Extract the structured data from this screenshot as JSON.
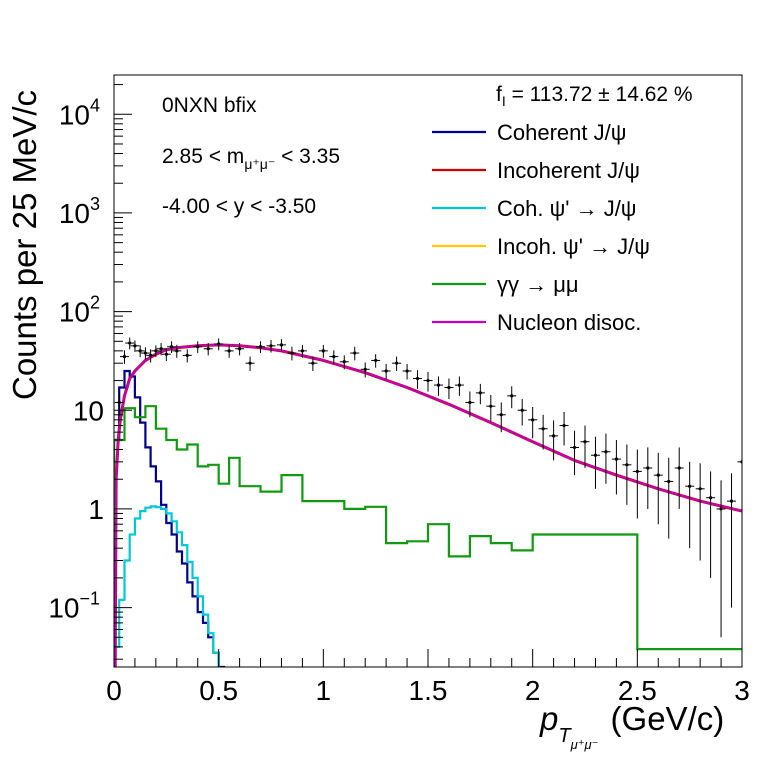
{
  "chart_data": {
    "type": "line",
    "scale": {
      "y": "log"
    },
    "xlim": [
      0,
      3
    ],
    "ylim": [
      0.025,
      25000
    ],
    "y_axis_label": "Counts per  25 MeV/c",
    "x_axis_label": "p",
    "x_axis_label_subscript": "T",
    "x_axis_label_subsub": "μ⁺μ⁻",
    "x_axis_unit": "(GeV/c)",
    "x_ticks": [
      {
        "v": 0,
        "label": "0"
      },
      {
        "v": 0.5,
        "label": "0.5"
      },
      {
        "v": 1,
        "label": "1"
      },
      {
        "v": 1.5,
        "label": "1.5"
      },
      {
        "v": 2,
        "label": "2"
      },
      {
        "v": 2.5,
        "label": "2.5"
      },
      {
        "v": 3,
        "label": "3"
      }
    ],
    "y_ticks": [
      {
        "v": 0.1,
        "base": "10",
        "exp": "−1"
      },
      {
        "v": 1,
        "base": "1",
        "exp": ""
      },
      {
        "v": 10,
        "base": "10",
        "exp": ""
      },
      {
        "v": 100,
        "base": "10",
        "exp": "2"
      },
      {
        "v": 1000,
        "base": "10",
        "exp": "3"
      },
      {
        "v": 10000,
        "base": "10",
        "exp": "4"
      }
    ],
    "annotations": {
      "label": "0NXN bfix",
      "mass_pre": "2.85 < m",
      "mass_sub": "μ⁺μ⁻",
      "mass_post": " < 3.35",
      "rapidity": "-4.00 < y < -3.50",
      "fi_pre": "f",
      "fi_sub": "I",
      "fi_post": " = 113.72 ± 14.62 %"
    },
    "legend_position": "top-right",
    "series": [
      {
        "name": "Coherent J/ψ",
        "color": "#00008b",
        "style": "step",
        "x": [
          0,
          0.025,
          0.05,
          0.075,
          0.1,
          0.125,
          0.15,
          0.175,
          0.2,
          0.225,
          0.25,
          0.275,
          0.3,
          0.325,
          0.35,
          0.375,
          0.4,
          0.425,
          0.45,
          0.475,
          0.5,
          0.525,
          0.55,
          0.575
        ],
        "y": [
          5,
          17,
          25,
          22,
          13.5,
          7.5,
          4.2,
          2.7,
          1.9,
          1.1,
          0.72,
          0.55,
          0.37,
          0.28,
          0.18,
          0.13,
          0.09,
          0.07,
          0.05,
          0.035,
          0.025,
          0.02,
          0.015,
          0.012
        ]
      },
      {
        "name": "Incoherent J/ψ",
        "color": "#cc0000",
        "style": "smooth",
        "x": [
          0.005,
          0.01,
          0.02,
          0.03,
          0.05,
          0.075,
          0.1,
          0.15,
          0.2,
          0.25,
          0.3,
          0.4,
          0.5,
          0.6,
          0.7,
          0.8,
          1,
          1.2,
          1.4,
          1.6,
          1.8,
          2,
          2.2,
          2.4,
          2.6,
          2.8,
          3
        ],
        "y": [
          0.01,
          2,
          5,
          8,
          14,
          21,
          25,
          32,
          37,
          41,
          43,
          45,
          46,
          45,
          43,
          40,
          32,
          24,
          17,
          11.5,
          7.5,
          4.8,
          3.1,
          2.2,
          1.6,
          1.2,
          0.95
        ]
      },
      {
        "name": "Coh. ψ' →  J/ψ",
        "color": "#00c8d2",
        "style": "step",
        "x": [
          0,
          0.025,
          0.05,
          0.075,
          0.1,
          0.125,
          0.15,
          0.175,
          0.2,
          0.225,
          0.25,
          0.275,
          0.3,
          0.325,
          0.35,
          0.375,
          0.4,
          0.425,
          0.45,
          0.475,
          0.5,
          0.525,
          0.55,
          0.575
        ],
        "y": [
          0.04,
          0.12,
          0.3,
          0.55,
          0.8,
          0.95,
          1.03,
          1.06,
          1.04,
          1.0,
          0.9,
          0.75,
          0.58,
          0.43,
          0.29,
          0.2,
          0.13,
          0.085,
          0.055,
          0.035,
          0.022,
          0.015,
          0.01,
          0.007
        ]
      },
      {
        "name": "Incoh. ψ' →  J/ψ",
        "color": "#ffc800",
        "style": "none",
        "x": [],
        "y": []
      },
      {
        "name": "γγ → μμ",
        "color": "#119911",
        "style": "step",
        "x": [
          0,
          0.05,
          0.1,
          0.15,
          0.2,
          0.25,
          0.3,
          0.35,
          0.4,
          0.45,
          0.5,
          0.55,
          0.6,
          0.7,
          0.8,
          0.9,
          1,
          1.1,
          1.2,
          1.3,
          1.4,
          1.5,
          1.6,
          1.7,
          1.8,
          1.9,
          2,
          2.5,
          3
        ],
        "y": [
          5,
          10.5,
          8.5,
          11,
          6.5,
          5,
          4,
          4.5,
          2.7,
          2.8,
          1.8,
          3.3,
          1.7,
          1.5,
          2.2,
          1.2,
          1.2,
          1,
          1.05,
          0.45,
          0.47,
          0.7,
          0.33,
          0.53,
          0.45,
          0.38,
          0.55,
          0.038,
          0.038
        ]
      },
      {
        "name": "Nucleon disoc.",
        "color": "#c000c0",
        "style": "smooth",
        "x": [
          0.005,
          0.01,
          0.02,
          0.03,
          0.05,
          0.075,
          0.1,
          0.15,
          0.2,
          0.25,
          0.3,
          0.4,
          0.5,
          0.6,
          0.7,
          0.8,
          1,
          1.2,
          1.4,
          1.6,
          1.8,
          2,
          2.2,
          2.4,
          2.6,
          2.8,
          3
        ],
        "y": [
          0.01,
          2,
          5,
          8,
          14,
          21,
          25,
          32,
          37,
          41,
          43,
          45,
          46,
          45,
          43,
          40,
          32,
          24,
          17,
          11.5,
          7.5,
          4.8,
          3.1,
          2.2,
          1.6,
          1.2,
          0.95
        ]
      },
      {
        "name": "Data",
        "color": "#000000",
        "style": "points",
        "legend": false,
        "x": [
          0.025,
          0.05,
          0.075,
          0.1,
          0.125,
          0.15,
          0.175,
          0.2,
          0.225,
          0.25,
          0.275,
          0.3,
          0.35,
          0.4,
          0.45,
          0.5,
          0.55,
          0.6,
          0.65,
          0.7,
          0.75,
          0.8,
          0.85,
          0.9,
          0.95,
          1,
          1.05,
          1.1,
          1.15,
          1.2,
          1.25,
          1.3,
          1.35,
          1.4,
          1.45,
          1.5,
          1.55,
          1.6,
          1.65,
          1.7,
          1.75,
          1.8,
          1.85,
          1.9,
          1.95,
          2,
          2.05,
          2.1,
          2.15,
          2.2,
          2.25,
          2.3,
          2.35,
          2.4,
          2.45,
          2.5,
          2.55,
          2.6,
          2.65,
          2.7,
          2.75,
          2.8,
          2.85,
          2.9,
          2.95,
          3
        ],
        "y": [
          12,
          35,
          48,
          45,
          40,
          38,
          36,
          40,
          42,
          37,
          44,
          40,
          36,
          44,
          42,
          47,
          40,
          42,
          30,
          44,
          45,
          46,
          38,
          40,
          30,
          40,
          35,
          31,
          38,
          26,
          32,
          25,
          30,
          25,
          21,
          20,
          18,
          17,
          18,
          12,
          15,
          11,
          9,
          14,
          10,
          8,
          6.5,
          5.5,
          7,
          4.2,
          4.8,
          3.5,
          3.8,
          3.2,
          2.8,
          2.4,
          2.6,
          2.2,
          1.9,
          2.6,
          1.7,
          1.6,
          1.3,
          1.0,
          1.2,
          3.0
        ],
        "err": [
          3,
          5.5,
          6.5,
          6,
          5.5,
          5.5,
          5.5,
          5.5,
          6,
          5.5,
          6,
          6,
          5.5,
          6,
          6,
          6.5,
          6,
          6,
          5,
          6,
          6.5,
          6.5,
          6,
          6,
          5,
          6,
          5.5,
          5,
          6,
          4.5,
          5,
          4.5,
          5,
          4.5,
          4.5,
          4.5,
          4,
          4,
          4,
          3.5,
          3.5,
          3.3,
          3,
          3.5,
          3,
          2.8,
          2.5,
          2.4,
          2.6,
          2,
          2.2,
          1.9,
          2,
          1.8,
          1.7,
          1.6,
          1.6,
          1.5,
          1.4,
          1.6,
          1.3,
          1.3,
          1.1,
          0.95,
          1.1,
          1.7
        ]
      }
    ]
  }
}
